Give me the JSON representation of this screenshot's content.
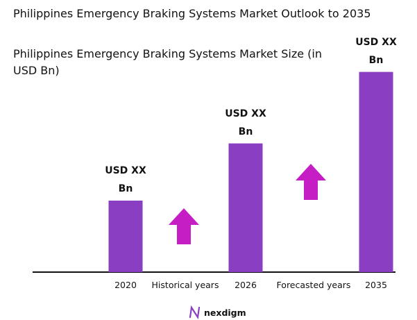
{
  "chart_data": {
    "type": "bar",
    "title": "Philippines Emergency Braking Systems Market Outlook to 2035",
    "subtitle": "Philippines Emergency Braking Systems Market Size (in USD Bn)",
    "categories": [
      "2020",
      "2026",
      "2035"
    ],
    "values": [
      1.0,
      1.8,
      2.8
    ],
    "value_labels": [
      "USD XX Bn",
      "USD XX Bn",
      "USD XX Bn"
    ],
    "annotations": [
      "Historical years",
      "Forecasted years"
    ],
    "color": "#8a3fc2",
    "arrow_color": "#c41ec4",
    "ylim": [
      0,
      3.0
    ],
    "brand": "nexdigm"
  }
}
